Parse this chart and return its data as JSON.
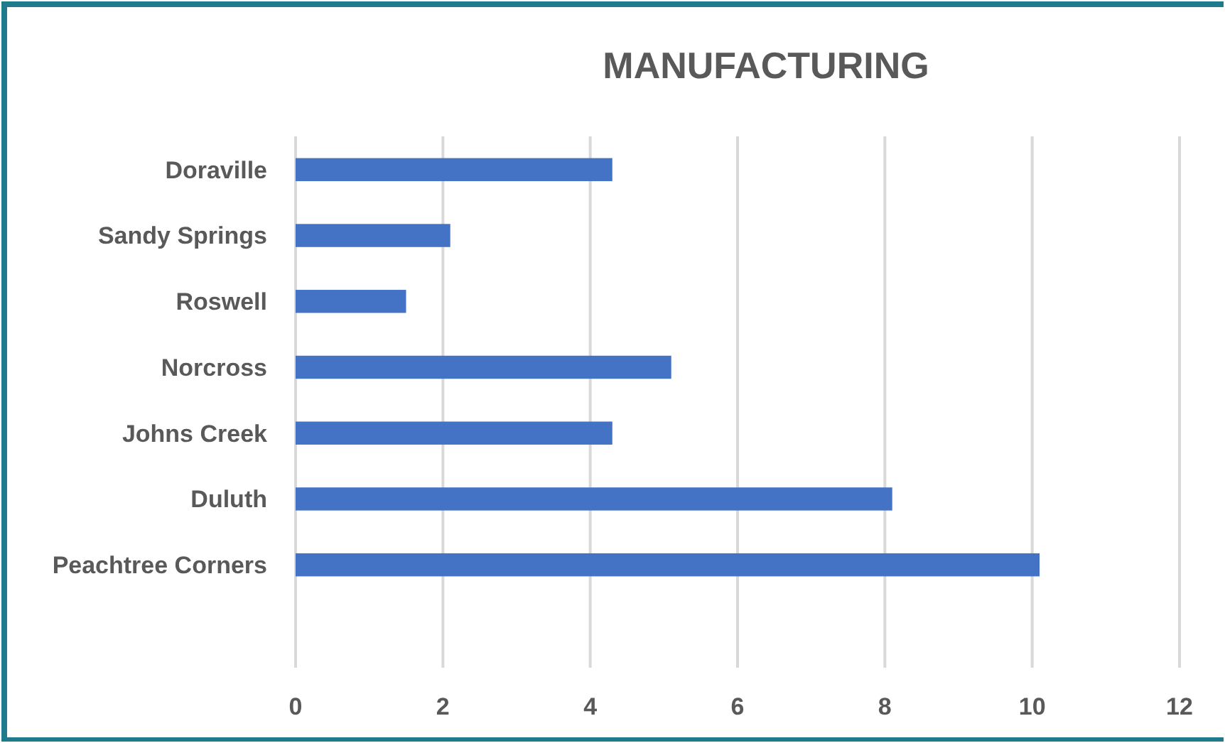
{
  "chart_data": {
    "type": "bar",
    "orientation": "horizontal",
    "title": "MANUFACTURING",
    "categories": [
      "Doraville",
      "Sandy Springs",
      "Roswell",
      "Norcross",
      "Johns Creek",
      "Duluth",
      "Peachtree Corners"
    ],
    "values": [
      4.3,
      2.1,
      1.5,
      5.1,
      4.3,
      8.1,
      10.1
    ],
    "color": "#4472c4",
    "xlim": [
      0,
      12
    ],
    "xticks": [
      0,
      2,
      4,
      6,
      8,
      10,
      12
    ],
    "grid": "x"
  }
}
